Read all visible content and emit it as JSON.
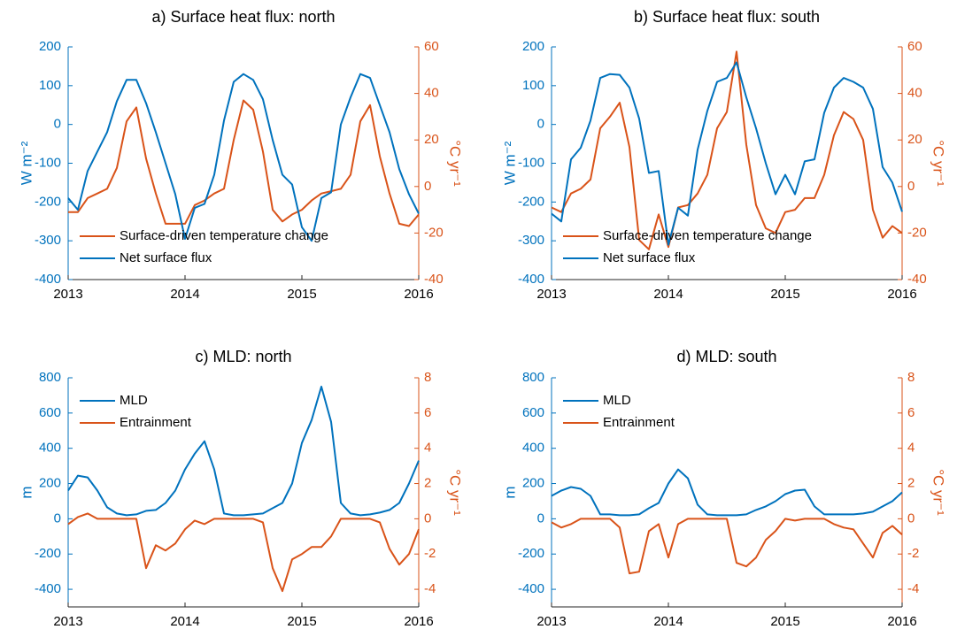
{
  "chart_data": [
    {
      "type": "line",
      "title": "a) Surface heat flux: north",
      "ylabel": "W m⁻²",
      "y2label": "°C yr⁻¹",
      "legend": "lower left",
      "x": [
        2013,
        2013.083,
        2013.167,
        2013.25,
        2013.333,
        2013.417,
        2013.5,
        2013.583,
        2013.667,
        2013.75,
        2013.833,
        2013.917,
        2014,
        2014.083,
        2014.167,
        2014.25,
        2014.333,
        2014.417,
        2014.5,
        2014.583,
        2014.667,
        2014.75,
        2014.833,
        2014.917,
        2015,
        2015.083,
        2015.167,
        2015.25,
        2015.333,
        2015.417,
        2015.5,
        2015.583,
        2015.667,
        2015.75,
        2015.833,
        2015.917,
        2016
      ],
      "xlim": [
        2013,
        2016
      ],
      "xticks": [
        2013,
        2014,
        2015,
        2016
      ],
      "ylim": [
        -400,
        200
      ],
      "yticks": [
        -400,
        -300,
        -200,
        -100,
        0,
        100,
        200
      ],
      "y2lim": [
        -40,
        60
      ],
      "y2ticks": [
        -40,
        -20,
        0,
        20,
        40,
        60
      ],
      "series": [
        {
          "name": "Surface-driven temperature change",
          "color": "#d95319",
          "axis": "y2",
          "values": [
            -11,
            -11,
            -5,
            -3,
            -1,
            8,
            28,
            34,
            12,
            -3,
            -16,
            -16,
            -16,
            -8,
            -6,
            -3,
            -1,
            20,
            37,
            33,
            15,
            -10,
            -15,
            -12,
            -10,
            -6,
            -3,
            -2,
            -1,
            5,
            28,
            35,
            13,
            -3,
            -16,
            -17,
            -12
          ]
        },
        {
          "name": "Net surface flux",
          "color": "#0072bd",
          "values": [
            -190,
            -220,
            -120,
            -70,
            -20,
            60,
            115,
            115,
            55,
            -20,
            -100,
            -180,
            -295,
            -215,
            -205,
            -130,
            10,
            110,
            130,
            115,
            65,
            -40,
            -130,
            -155,
            -265,
            -300,
            -190,
            -175,
            0,
            70,
            130,
            120,
            50,
            -20,
            -115,
            -180,
            -230
          ]
        }
      ]
    },
    {
      "type": "line",
      "title": "b) Surface heat flux: south",
      "ylabel": "W m⁻²",
      "y2label": "°C yr⁻¹",
      "legend": "lower left",
      "x": [
        2013,
        2013.083,
        2013.167,
        2013.25,
        2013.333,
        2013.417,
        2013.5,
        2013.583,
        2013.667,
        2013.75,
        2013.833,
        2013.917,
        2014,
        2014.083,
        2014.167,
        2014.25,
        2014.333,
        2014.417,
        2014.5,
        2014.583,
        2014.667,
        2014.75,
        2014.833,
        2014.917,
        2015,
        2015.083,
        2015.167,
        2015.25,
        2015.333,
        2015.417,
        2015.5,
        2015.583,
        2015.667,
        2015.75,
        2015.833,
        2015.917,
        2016
      ],
      "xlim": [
        2013,
        2016
      ],
      "xticks": [
        2013,
        2014,
        2015,
        2016
      ],
      "ylim": [
        -400,
        200
      ],
      "yticks": [
        -400,
        -300,
        -200,
        -100,
        0,
        100,
        200
      ],
      "y2lim": [
        -40,
        60
      ],
      "y2ticks": [
        -40,
        -20,
        0,
        20,
        40,
        60
      ],
      "series": [
        {
          "name": "Surface-driven temperature change",
          "color": "#d95319",
          "axis": "y2",
          "values": [
            -9,
            -11,
            -3,
            -1,
            3,
            25,
            30,
            36,
            17,
            -23,
            -27,
            -12,
            -26,
            -9,
            -8,
            -3,
            5,
            25,
            32,
            58,
            18,
            -8,
            -18,
            -20,
            -11,
            -10,
            -5,
            -5,
            5,
            22,
            32,
            29,
            20,
            -10,
            -22,
            -17,
            -20
          ]
        },
        {
          "name": "Net surface flux",
          "color": "#0072bd",
          "values": [
            -230,
            -250,
            -90,
            -60,
            10,
            120,
            130,
            128,
            95,
            15,
            -125,
            -120,
            -310,
            -215,
            -235,
            -65,
            35,
            110,
            120,
            160,
            70,
            -10,
            -100,
            -180,
            -130,
            -180,
            -95,
            -90,
            30,
            95,
            120,
            110,
            95,
            40,
            -110,
            -150,
            -225
          ]
        }
      ]
    },
    {
      "type": "line",
      "title": "c) MLD: north",
      "ylabel": "m",
      "y2label": "°C yr⁻¹",
      "legend": "upper left",
      "x": [
        2013,
        2013.083,
        2013.167,
        2013.25,
        2013.333,
        2013.417,
        2013.5,
        2013.583,
        2013.667,
        2013.75,
        2013.833,
        2013.917,
        2014,
        2014.083,
        2014.167,
        2014.25,
        2014.333,
        2014.417,
        2014.5,
        2014.583,
        2014.667,
        2014.75,
        2014.833,
        2014.917,
        2015,
        2015.083,
        2015.167,
        2015.25,
        2015.333,
        2015.417,
        2015.5,
        2015.583,
        2015.667,
        2015.75,
        2015.833,
        2015.917,
        2016
      ],
      "xlim": [
        2013,
        2016
      ],
      "xticks": [
        2013,
        2014,
        2015,
        2016
      ],
      "ylim": [
        -500,
        800
      ],
      "yticks": [
        -400,
        -200,
        0,
        200,
        400,
        600,
        800
      ],
      "y2lim": [
        -5,
        8
      ],
      "y2ticks": [
        -4,
        -2,
        0,
        2,
        4,
        6,
        8
      ],
      "series": [
        {
          "name": "MLD",
          "color": "#0072bd",
          "values": [
            160,
            245,
            235,
            160,
            65,
            30,
            20,
            25,
            45,
            50,
            90,
            160,
            280,
            370,
            440,
            280,
            30,
            20,
            20,
            25,
            30,
            60,
            90,
            200,
            430,
            560,
            750,
            550,
            90,
            30,
            20,
            25,
            35,
            50,
            90,
            200,
            330
          ]
        },
        {
          "name": "Entrainment",
          "color": "#d95319",
          "axis": "y2",
          "values": [
            -0.3,
            0.1,
            0.3,
            0,
            0,
            0,
            0,
            0,
            -2.8,
            -1.5,
            -1.8,
            -1.4,
            -0.6,
            -0.1,
            -0.3,
            0,
            0,
            0,
            0,
            0,
            -0.2,
            -2.8,
            -4.1,
            -2.3,
            -2.0,
            -1.6,
            -1.6,
            -1.0,
            0,
            0,
            0,
            0,
            -0.2,
            -1.7,
            -2.6,
            -2.0,
            -0.6
          ]
        }
      ]
    },
    {
      "type": "line",
      "title": "d) MLD: south",
      "ylabel": "m",
      "y2label": "°C yr⁻¹",
      "legend": "upper left",
      "x": [
        2013,
        2013.083,
        2013.167,
        2013.25,
        2013.333,
        2013.417,
        2013.5,
        2013.583,
        2013.667,
        2013.75,
        2013.833,
        2013.917,
        2014,
        2014.083,
        2014.167,
        2014.25,
        2014.333,
        2014.417,
        2014.5,
        2014.583,
        2014.667,
        2014.75,
        2014.833,
        2014.917,
        2015,
        2015.083,
        2015.167,
        2015.25,
        2015.333,
        2015.417,
        2015.5,
        2015.583,
        2015.667,
        2015.75,
        2015.833,
        2015.917,
        2016
      ],
      "xlim": [
        2013,
        2016
      ],
      "xticks": [
        2013,
        2014,
        2015,
        2016
      ],
      "ylim": [
        -500,
        800
      ],
      "yticks": [
        -400,
        -200,
        0,
        200,
        400,
        600,
        800
      ],
      "y2lim": [
        -5,
        8
      ],
      "y2ticks": [
        -4,
        -2,
        0,
        2,
        4,
        6,
        8
      ],
      "series": [
        {
          "name": "MLD",
          "color": "#0072bd",
          "values": [
            130,
            160,
            180,
            170,
            130,
            25,
            25,
            20,
            20,
            25,
            60,
            90,
            200,
            280,
            230,
            80,
            25,
            20,
            20,
            20,
            25,
            50,
            70,
            100,
            140,
            160,
            165,
            70,
            25,
            25,
            25,
            25,
            30,
            40,
            70,
            100,
            150
          ]
        },
        {
          "name": "Entrainment",
          "color": "#d95319",
          "axis": "y2",
          "values": [
            -0.2,
            -0.5,
            -0.3,
            0,
            0,
            0,
            0,
            -0.5,
            -3.1,
            -3.0,
            -0.7,
            -0.3,
            -2.2,
            -0.3,
            0,
            0,
            0,
            0,
            0,
            -2.5,
            -2.7,
            -2.2,
            -1.2,
            -0.7,
            0,
            -0.1,
            0,
            0,
            0,
            -0.3,
            -0.5,
            -0.6,
            -1.4,
            -2.2,
            -0.8,
            -0.4,
            -0.9
          ]
        }
      ]
    }
  ]
}
